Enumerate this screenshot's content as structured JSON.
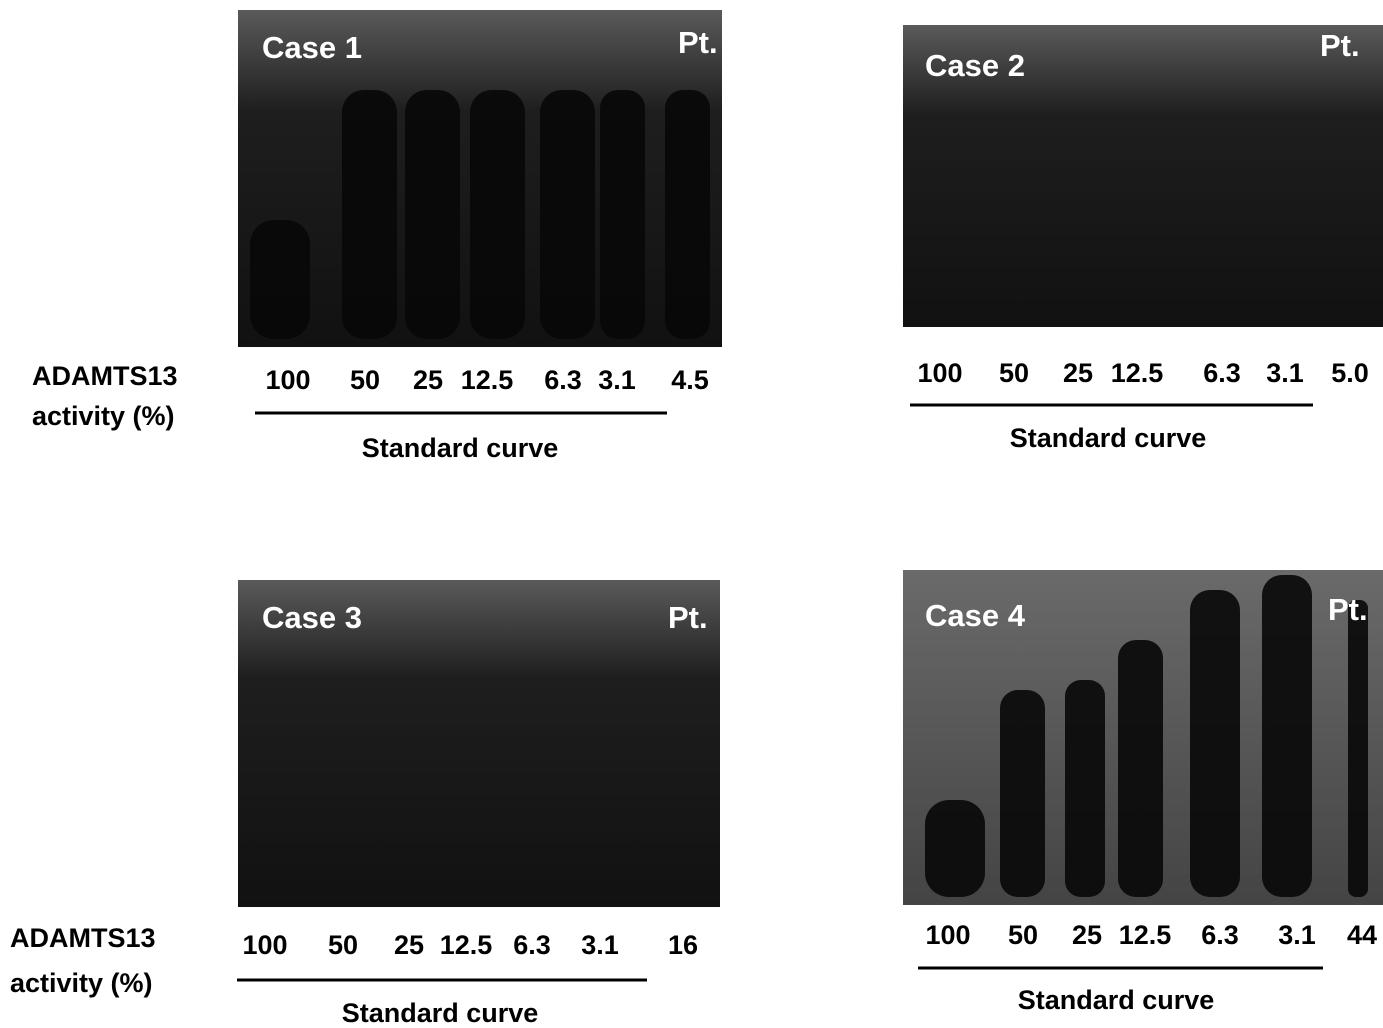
{
  "row_labels": [
    [
      "ADAMTS13",
      "activity (%)"
    ],
    [
      "ADAMTS13",
      "activity (%)"
    ]
  ],
  "panels": [
    {
      "title": "Case 1",
      "patient_label": "Pt.",
      "lanes": [
        "100",
        "50",
        "25",
        "12.5",
        "6.3",
        "3.1",
        "4.5"
      ],
      "underline_label": "Standard curve"
    },
    {
      "title": "Case 2",
      "patient_label": "Pt.",
      "lanes": [
        "100",
        "50",
        "25",
        "12.5",
        "6.3",
        "3.1",
        "5.0"
      ],
      "underline_label": "Standard curve"
    },
    {
      "title": "Case 3",
      "patient_label": "Pt.",
      "lanes": [
        "100",
        "50",
        "25",
        "12.5",
        "6.3",
        "3.1",
        "16"
      ],
      "underline_label": "Standard curve"
    },
    {
      "title": "Case 4",
      "patient_label": "Pt.",
      "lanes": [
        "100",
        "50",
        "25",
        "12.5",
        "6.3",
        "3.1",
        "44"
      ],
      "underline_label": "Standard curve"
    }
  ]
}
